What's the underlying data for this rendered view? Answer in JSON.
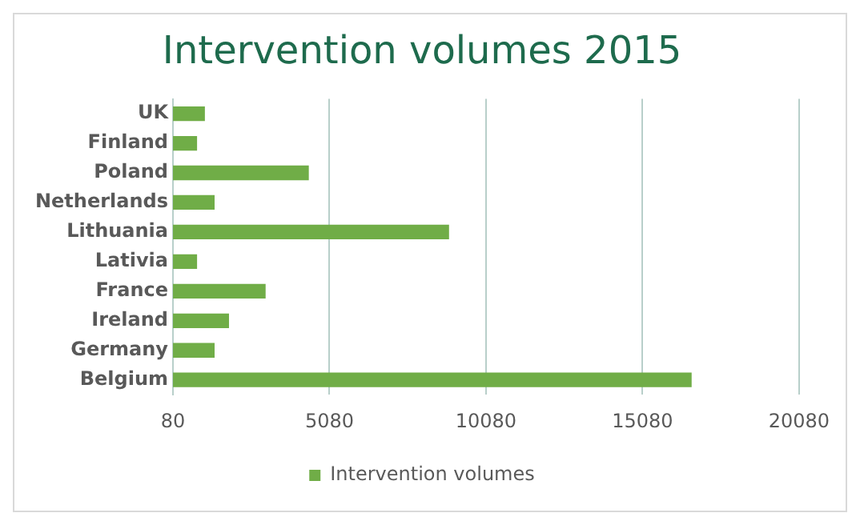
{
  "chart_data": {
    "type": "bar",
    "orientation": "horizontal",
    "title": "Intervention volumes 2015",
    "categories": [
      "UK",
      "Finland",
      "Poland",
      "Netherlands",
      "Lithuania",
      "Lativia",
      "France",
      "Ireland",
      "Germany",
      "Belgium"
    ],
    "series": [
      {
        "name": "Intervention volumes",
        "color": "#70ad47",
        "values": [
          1100,
          850,
          4420,
          1410,
          8900,
          850,
          3040,
          1870,
          1410,
          16650
        ]
      }
    ],
    "xlim": [
      80,
      20080
    ],
    "xticks": [
      80,
      5080,
      10080,
      15080,
      20080
    ],
    "grid": "x",
    "legend": "bottom"
  }
}
